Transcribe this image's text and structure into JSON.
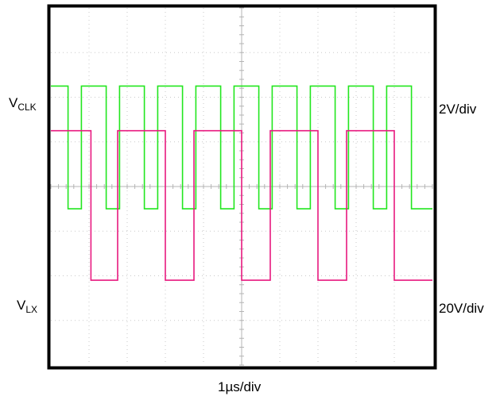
{
  "chart_data": {
    "type": "line",
    "title": "",
    "grid": true,
    "divisions": {
      "horizontal": 10,
      "vertical": 8,
      "minor_per_division": 5
    },
    "xlabel": "1µs/div",
    "x_unit": "µs",
    "x_range": [
      0,
      10
    ],
    "series": [
      {
        "name_main": "V",
        "name_sub": "CLK",
        "color": "#22e61e",
        "scale": "2V/div",
        "y_unit": "V",
        "y_range": [
          -7,
          9
        ],
        "x": [
          0,
          0.45,
          0.45,
          0.8,
          0.8,
          1.45,
          1.45,
          1.8,
          1.8,
          2.45,
          2.45,
          2.8,
          2.8,
          3.45,
          3.45,
          3.8,
          3.8,
          4.45,
          4.45,
          4.8,
          4.8,
          5.45,
          5.45,
          5.8,
          5.8,
          6.45,
          6.45,
          6.8,
          6.8,
          7.45,
          7.45,
          7.8,
          7.8,
          8.45,
          8.45,
          8.8,
          8.8,
          9.45,
          9.45,
          10
        ],
        "y": [
          5.5,
          5.5,
          0,
          0,
          5.5,
          5.5,
          0,
          0,
          5.5,
          5.5,
          0,
          0,
          5.5,
          5.5,
          0,
          0,
          5.5,
          5.5,
          0,
          0,
          5.5,
          5.5,
          0,
          0,
          5.5,
          5.5,
          0,
          0,
          5.5,
          5.5,
          0,
          0,
          5.5,
          5.5,
          0,
          0,
          5.5,
          5.5,
          0,
          0
        ]
      },
      {
        "name_main": "V",
        "name_sub": "LX",
        "color": "#e8197f",
        "scale": "20V/div",
        "y_unit": "V",
        "y_range": [
          -20,
          60
        ],
        "x": [
          0,
          1.05,
          1.05,
          1.75,
          1.75,
          3.0,
          3.0,
          3.75,
          3.75,
          5.0,
          5.0,
          5.75,
          5.75,
          7.0,
          7.0,
          7.75,
          7.75,
          9.0,
          9.0,
          10
        ],
        "y": [
          32.5,
          32.5,
          -1,
          -1,
          32.5,
          32.5,
          -1,
          -1,
          32.5,
          32.5,
          -1,
          -1,
          32.5,
          32.5,
          -1,
          -1,
          32.5,
          32.5,
          -1,
          -1
        ]
      }
    ]
  }
}
